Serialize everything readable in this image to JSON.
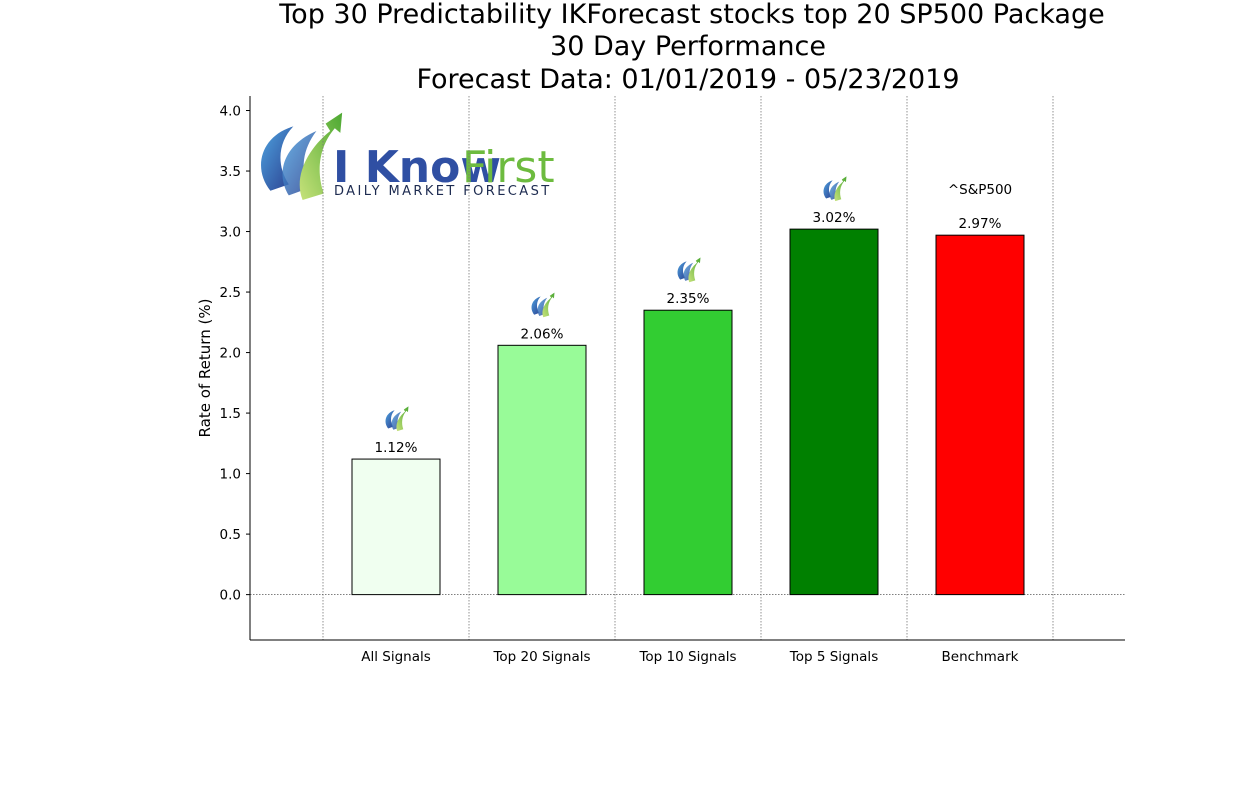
{
  "title_lines": [
    "Top 30 Predictability IKForecast stocks top 20 SP500 Package",
    "30 Day Performance",
    "Forecast Data: 01/01/2019 - 05/23/2019"
  ],
  "logo": {
    "word_a": "I Know",
    "word_b": "First",
    "tagline": "DAILY MARKET FORECAST",
    "colors": {
      "blue": "#2f4fa3",
      "green": "#6dbb3f",
      "light_blue": "#4a90d9"
    }
  },
  "chart_data": {
    "type": "bar",
    "title": "Top 30 Predictability IKForecast stocks top 20 SP500 Package\n30 Day Performance\nForecast Data: 01/01/2019 - 05/23/2019",
    "xlabel": "",
    "ylabel": "Rate of Return (%)",
    "categories": [
      "All Signals",
      "Top 20 Signals",
      "Top 10 Signals",
      "Top 5 Signals",
      "Benchmark"
    ],
    "values": [
      1.12,
      2.06,
      2.35,
      3.02,
      2.97
    ],
    "value_labels": [
      "1.12%",
      "2.06%",
      "2.35%",
      "3.02%",
      "2.97%"
    ],
    "bar_colors": [
      "#f0fff0",
      "#98fb98",
      "#32cd32",
      "#008000",
      "#ff0000"
    ],
    "bar_icons": [
      "ikf-logo-icon",
      "ikf-logo-icon",
      "ikf-logo-icon",
      "ikf-logo-icon",
      null
    ],
    "benchmark_label": "^S&P500",
    "ylim": [
      -0.375,
      4.12
    ],
    "yticks": [
      0.0,
      0.5,
      1.0,
      1.5,
      2.0,
      2.5,
      3.0,
      3.5,
      4.0
    ],
    "ytick_labels": [
      "0.0",
      "0.5",
      "1.0",
      "1.5",
      "2.0",
      "2.5",
      "3.0",
      "3.5",
      "4.0"
    ],
    "grid": "vertical dotted lines between bars, dotted zero line",
    "legend": "none"
  }
}
